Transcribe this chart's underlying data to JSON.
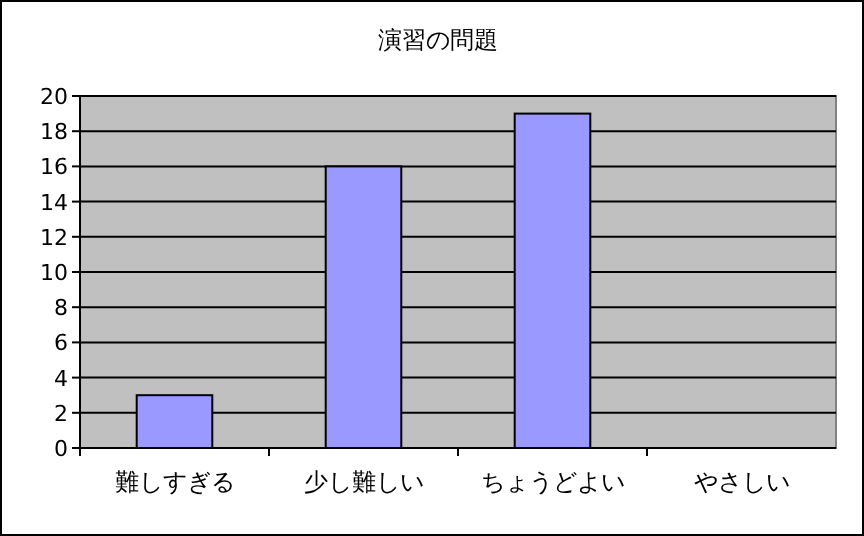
{
  "chart_data": {
    "type": "bar",
    "title": "演習の問題",
    "categories": [
      "難しすぎる",
      "少し難しい",
      "ちょうどよい",
      "やさしい"
    ],
    "values": [
      3,
      16,
      19,
      0
    ],
    "color": "#9999ff",
    "ylim": [
      0,
      20
    ],
    "yticks": [
      0,
      2,
      4,
      6,
      8,
      10,
      12,
      14,
      16,
      18,
      20
    ],
    "grid": "y"
  }
}
